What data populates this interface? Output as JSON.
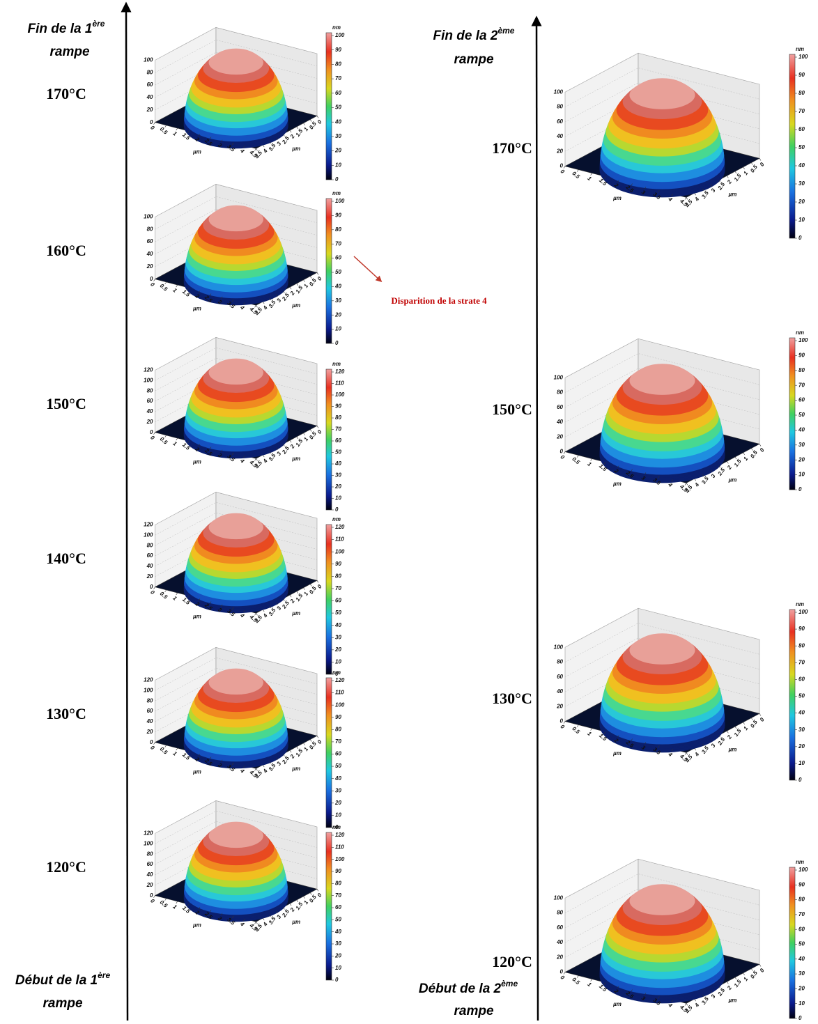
{
  "left_column": {
    "top_label": {
      "line1": "Fin de la 1",
      "sup": "ère",
      "line2": "rampe"
    },
    "bottom_label": {
      "line1": "Début de la 1",
      "sup": "ère",
      "line2": "rampe"
    },
    "panels": [
      {
        "temperature": "170°C",
        "colorbar_unit": "nm",
        "colorbar_ticks": [
          0,
          10,
          20,
          30,
          40,
          50,
          60,
          70,
          80,
          90,
          100
        ],
        "zticks": [
          0,
          20,
          40,
          60,
          80,
          100
        ],
        "xticks": [
          0,
          0.5,
          1,
          1.5,
          2,
          2.5,
          3,
          3.5,
          4,
          4.5
        ],
        "yticks": [
          0,
          0.5,
          1,
          1.5,
          2,
          2.5,
          3,
          3.5,
          4,
          4.5
        ],
        "axis_unit": "µm"
      },
      {
        "temperature": "160°C",
        "colorbar_unit": "nm",
        "colorbar_ticks": [
          0,
          10,
          20,
          30,
          40,
          50,
          60,
          70,
          80,
          90,
          100
        ],
        "zticks": [
          0,
          20,
          40,
          60,
          80,
          100
        ],
        "xticks": [
          0,
          0.5,
          1,
          1.5,
          2,
          2.5,
          3,
          3.5,
          4,
          4.5
        ],
        "yticks": [
          0,
          0.5,
          1,
          1.5,
          2,
          2.5,
          3,
          3.5,
          4,
          4.5
        ],
        "axis_unit": "µm"
      },
      {
        "temperature": "150°C",
        "colorbar_unit": "nm",
        "colorbar_ticks": [
          0,
          10,
          20,
          30,
          40,
          50,
          60,
          70,
          80,
          90,
          100,
          110,
          120
        ],
        "zticks": [
          0,
          20,
          40,
          60,
          80,
          100,
          120
        ],
        "xticks": [
          0,
          0.5,
          1,
          1.5,
          2,
          2.5,
          3,
          3.5,
          4,
          4.5
        ],
        "yticks": [
          0,
          0.5,
          1,
          1.5,
          2,
          2.5,
          3,
          3.5,
          4,
          4.5
        ],
        "axis_unit": "µm"
      },
      {
        "temperature": "140°C",
        "colorbar_unit": "nm",
        "colorbar_ticks": [
          0,
          10,
          20,
          30,
          40,
          50,
          60,
          70,
          80,
          90,
          100,
          110,
          120
        ],
        "zticks": [
          0,
          20,
          40,
          60,
          80,
          100,
          120
        ],
        "xticks": [
          0,
          0.5,
          1,
          1.5,
          2,
          2.5,
          3,
          3.5,
          4,
          4.5
        ],
        "yticks": [
          0,
          0.5,
          1,
          1.5,
          2,
          2.5,
          3,
          3.5,
          4,
          4.5
        ],
        "axis_unit": "µm"
      },
      {
        "temperature": "130°C",
        "colorbar_unit": "nm",
        "colorbar_ticks": [
          0,
          10,
          20,
          30,
          40,
          50,
          60,
          70,
          80,
          90,
          100,
          110,
          120
        ],
        "zticks": [
          0,
          20,
          40,
          60,
          80,
          100,
          120
        ],
        "xticks": [
          0,
          0.5,
          1,
          1.5,
          2,
          2.5,
          3,
          3.5,
          4,
          4.5
        ],
        "yticks": [
          0,
          0.5,
          1,
          1.5,
          2,
          2.5,
          3,
          3.5,
          4,
          4.5
        ],
        "axis_unit": "µm"
      },
      {
        "temperature": "120°C",
        "colorbar_unit": "nm",
        "colorbar_ticks": [
          0,
          10,
          20,
          30,
          40,
          50,
          60,
          70,
          80,
          90,
          100,
          110,
          120
        ],
        "zticks": [
          0,
          20,
          40,
          60,
          80,
          100,
          120
        ],
        "xticks": [
          0,
          0.5,
          1,
          1.5,
          2,
          2.5,
          3,
          3.5,
          4,
          4.5
        ],
        "yticks": [
          0,
          0.5,
          1,
          1.5,
          2,
          2.5,
          3,
          3.5,
          4,
          4.5
        ],
        "axis_unit": "µm"
      }
    ]
  },
  "right_column": {
    "top_label": {
      "line1": "Fin de la 2",
      "sup": "ème",
      "line2": "rampe"
    },
    "bottom_label": {
      "line1": "Début de la 2",
      "sup": "ème",
      "line2": "rampe"
    },
    "panels": [
      {
        "temperature": "170°C",
        "colorbar_unit": "nm",
        "colorbar_ticks": [
          0,
          10,
          20,
          30,
          40,
          50,
          60,
          70,
          80,
          90,
          100
        ],
        "zticks": [
          0,
          20,
          40,
          60,
          80,
          100
        ],
        "xticks": [
          0,
          0.5,
          1,
          1.5,
          2,
          2.5,
          3,
          3.5,
          4,
          4.5
        ],
        "yticks": [
          0,
          0.5,
          1,
          1.5,
          2,
          2.5,
          3,
          3.5,
          4,
          4.5
        ],
        "axis_unit": "µm"
      },
      {
        "temperature": "150°C",
        "colorbar_unit": "nm",
        "colorbar_ticks": [
          0,
          10,
          20,
          30,
          40,
          50,
          60,
          70,
          80,
          90,
          100
        ],
        "zticks": [
          0,
          20,
          40,
          60,
          80,
          100
        ],
        "xticks": [
          0,
          0.5,
          1,
          1.5,
          2,
          2.5,
          3,
          3.5,
          4,
          4.5
        ],
        "yticks": [
          0,
          0.5,
          1,
          1.5,
          2,
          2.5,
          3,
          3.5,
          4,
          4.5
        ],
        "axis_unit": "µm"
      },
      {
        "temperature": "130°C",
        "colorbar_unit": "nm",
        "colorbar_ticks": [
          0,
          10,
          20,
          30,
          40,
          50,
          60,
          70,
          80,
          90,
          100
        ],
        "zticks": [
          0,
          20,
          40,
          60,
          80,
          100
        ],
        "xticks": [
          0,
          0.5,
          1,
          1.5,
          2,
          2.5,
          3,
          3.5,
          4,
          4.5
        ],
        "yticks": [
          0,
          0.5,
          1,
          1.5,
          2,
          2.5,
          3,
          3.5,
          4,
          4.5
        ],
        "axis_unit": "µm"
      },
      {
        "temperature": "120°C",
        "colorbar_unit": "nm",
        "colorbar_ticks": [
          0,
          10,
          20,
          30,
          40,
          50,
          60,
          70,
          80,
          90,
          100
        ],
        "zticks": [
          0,
          20,
          40,
          60,
          80,
          100
        ],
        "xticks": [
          0,
          0.5,
          1,
          1.5,
          2,
          2.5,
          3,
          3.5,
          4,
          4.5
        ],
        "yticks": [
          0,
          0.5,
          1,
          1.5,
          2,
          2.5,
          3,
          3.5,
          4,
          4.5
        ],
        "axis_unit": "µm"
      }
    ]
  },
  "annotation": "Disparition de la strate 4"
}
